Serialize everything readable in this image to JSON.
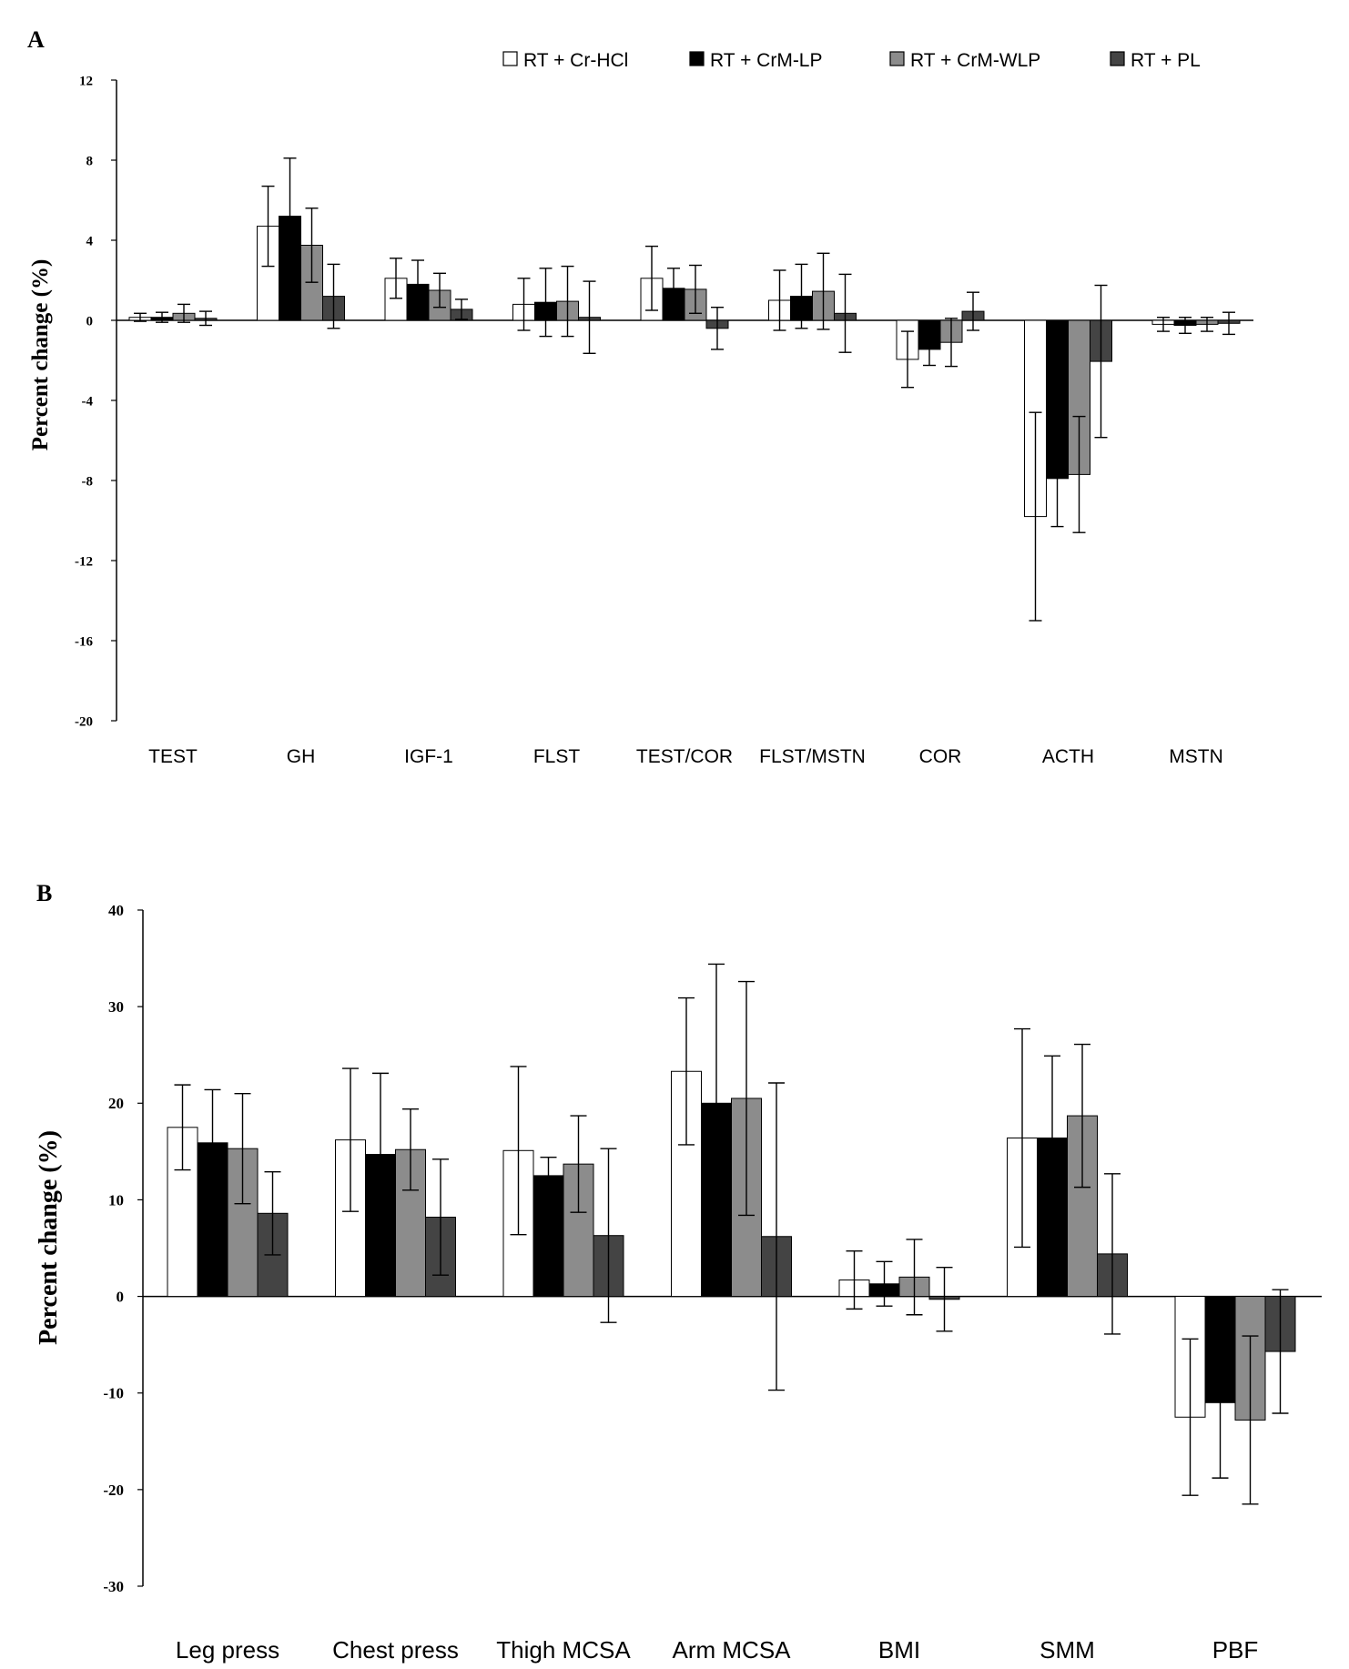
{
  "chart_data": [
    {
      "type": "bar",
      "panel_label": "A",
      "ylabel": "Percent change (%)",
      "ylim": [
        -20,
        12
      ],
      "yticks": [
        "12",
        "8",
        "4",
        "0",
        "-4",
        "-8",
        "-12",
        "-16",
        "-20"
      ],
      "yticks_values": [
        12,
        8,
        4,
        0,
        -4,
        -8,
        -12,
        -16,
        -20
      ],
      "grid": false,
      "legend_position": "top",
      "categories": [
        "TEST",
        "GH",
        "IGF-1",
        "FLST",
        "TEST/COR",
        "FLST/MSTN",
        "COR",
        "ACTH",
        "MSTN"
      ],
      "series": [
        {
          "name": "RT + Cr-HCl",
          "color": "#ffffff",
          "values": [
            0.15,
            4.7,
            2.1,
            0.8,
            2.1,
            1.0,
            -1.95,
            -9.8,
            -0.2
          ],
          "errors": [
            0.2,
            2.0,
            1.0,
            1.3,
            1.6,
            1.5,
            1.4,
            5.2,
            0.35
          ]
        },
        {
          "name": "RT + CrM-LP",
          "color": "#000000",
          "values": [
            0.15,
            5.2,
            1.8,
            0.9,
            1.6,
            1.2,
            -1.45,
            -7.9,
            -0.25
          ],
          "errors": [
            0.25,
            2.9,
            1.2,
            1.7,
            1.0,
            1.6,
            0.8,
            2.4,
            0.4
          ]
        },
        {
          "name": "RT + CrM-WLP",
          "color": "#8c8c8c",
          "values": [
            0.35,
            3.75,
            1.5,
            0.95,
            1.55,
            1.45,
            -1.1,
            -7.7,
            -0.2
          ],
          "errors": [
            0.45,
            1.85,
            0.85,
            1.75,
            1.2,
            1.9,
            1.2,
            2.9,
            0.35
          ]
        },
        {
          "name": "RT + PL",
          "color": "#444444",
          "values": [
            0.1,
            1.2,
            0.55,
            0.15,
            -0.4,
            0.35,
            0.45,
            -2.05,
            -0.15
          ],
          "errors": [
            0.35,
            1.6,
            0.5,
            1.8,
            1.05,
            1.95,
            0.95,
            3.8,
            0.55
          ]
        }
      ]
    },
    {
      "type": "bar",
      "panel_label": "B",
      "ylabel": "Percent change (%)",
      "ylim": [
        -30,
        40
      ],
      "yticks": [
        "40",
        "30",
        "20",
        "10",
        "0",
        "-10",
        "-20",
        "-30"
      ],
      "yticks_values": [
        40,
        30,
        20,
        10,
        0,
        -10,
        -20,
        -30
      ],
      "grid": false,
      "categories": [
        "Leg press",
        "Chest press",
        "Thigh MCSA",
        "Arm MCSA",
        "BMI",
        "SMM",
        "PBF"
      ],
      "series": [
        {
          "name": "RT + Cr-HCl",
          "color": "#ffffff",
          "values": [
            17.5,
            16.2,
            15.1,
            23.3,
            1.7,
            16.4,
            -12.5
          ],
          "errors": [
            4.4,
            7.4,
            8.7,
            7.6,
            3.0,
            11.3,
            8.1
          ]
        },
        {
          "name": "RT + CrM-LP",
          "color": "#000000",
          "values": [
            15.9,
            14.7,
            12.5,
            20.0,
            1.3,
            16.4,
            -11.0
          ],
          "errors": [
            5.5,
            8.4,
            1.9,
            14.4,
            2.3,
            8.5,
            7.8
          ]
        },
        {
          "name": "RT + CrM-WLP",
          "color": "#8c8c8c",
          "values": [
            15.3,
            15.2,
            13.7,
            20.5,
            2.0,
            18.7,
            -12.8
          ],
          "errors": [
            5.7,
            4.2,
            5.0,
            12.1,
            3.9,
            7.4,
            8.7
          ]
        },
        {
          "name": "RT + PL",
          "color": "#444444",
          "values": [
            8.6,
            8.2,
            6.3,
            6.2,
            -0.3,
            4.4,
            -5.7
          ],
          "errors": [
            4.3,
            6.0,
            9.0,
            15.9,
            3.3,
            8.3,
            6.4
          ]
        }
      ]
    }
  ]
}
